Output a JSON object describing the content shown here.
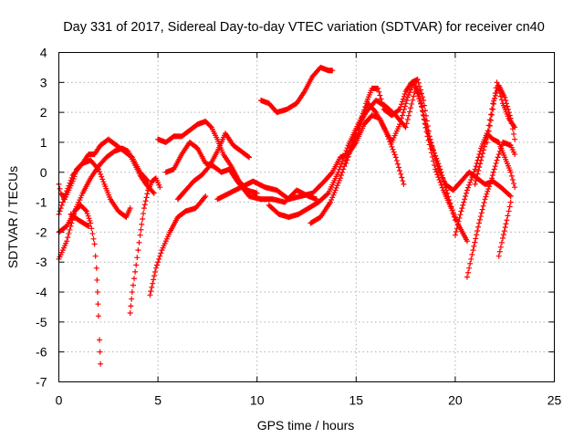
{
  "chart_data": {
    "type": "scatter",
    "title": "Day 331 of 2017, Sidereal Day-to-day VTEC variation (SDTVAR) for receiver cn40",
    "xlabel": "GPS time / hours",
    "ylabel": "SDTVAR / TECUs",
    "xlim": [
      0,
      25
    ],
    "ylim": [
      -7,
      4
    ],
    "xticks": [
      0,
      5,
      10,
      15,
      20,
      25
    ],
    "yticks": [
      -7,
      -6,
      -5,
      -4,
      -3,
      -2,
      -1,
      0,
      1,
      2,
      3,
      4
    ],
    "grid": true,
    "marker": "plus",
    "color": "#ff0000",
    "tracks": [
      [
        [
          0.0,
          -1.4
        ],
        [
          0.3,
          -0.8
        ],
        [
          0.7,
          -0.1
        ],
        [
          1.2,
          0.3
        ],
        [
          1.6,
          0.4
        ],
        [
          2.0,
          0.1
        ],
        [
          2.3,
          -0.4
        ],
        [
          2.6,
          -0.9
        ],
        [
          3.0,
          -1.3
        ],
        [
          3.4,
          -1.5
        ],
        [
          3.6,
          -1.2
        ]
      ],
      [
        [
          0.0,
          -2.0
        ],
        [
          0.4,
          -1.8
        ],
        [
          0.8,
          -1.3
        ],
        [
          1.2,
          -0.7
        ],
        [
          1.6,
          -0.2
        ],
        [
          2.0,
          0.2
        ],
        [
          2.4,
          0.5
        ],
        [
          2.8,
          0.7
        ],
        [
          3.2,
          0.8
        ],
        [
          3.5,
          0.7
        ],
        [
          3.8,
          0.3
        ],
        [
          4.1,
          -0.1
        ],
        [
          4.4,
          -0.4
        ],
        [
          4.8,
          -0.7
        ]
      ],
      [
        [
          0.0,
          -2.9
        ],
        [
          0.2,
          -2.6
        ],
        [
          0.4,
          -2.3
        ],
        [
          0.6,
          -1.8
        ],
        [
          0.8,
          -1.3
        ],
        [
          1.1,
          -1.1
        ],
        [
          1.4,
          -1.3
        ],
        [
          1.6,
          -1.7
        ],
        [
          1.8,
          -2.4
        ],
        [
          1.9,
          -3.2
        ],
        [
          1.95,
          -4.0
        ],
        [
          2.0,
          -4.8
        ],
        [
          2.05,
          -5.6
        ],
        [
          2.1,
          -6.4
        ]
      ],
      [
        [
          0.0,
          -0.4
        ],
        [
          0.1,
          -0.7
        ],
        [
          0.3,
          -0.9
        ],
        [
          0.5,
          -0.6
        ],
        [
          0.7,
          -0.3
        ],
        [
          0.9,
          0.1
        ],
        [
          1.2,
          0.3
        ],
        [
          1.5,
          0.6
        ],
        [
          1.8,
          0.6
        ],
        [
          2.1,
          0.9
        ],
        [
          2.5,
          1.1
        ],
        [
          2.9,
          0.9
        ],
        [
          3.3,
          0.7
        ],
        [
          3.7,
          0.5
        ],
        [
          4.1,
          0.0
        ],
        [
          4.5,
          -0.3
        ]
      ],
      [
        [
          0.6,
          -1.4
        ],
        [
          1.0,
          -1.6
        ],
        [
          1.5,
          -1.8
        ]
      ],
      [
        [
          3.6,
          -4.7
        ],
        [
          3.7,
          -4.0
        ],
        [
          3.9,
          -3.1
        ],
        [
          4.1,
          -2.1
        ],
        [
          4.3,
          -1.2
        ],
        [
          4.5,
          -0.6
        ],
        [
          4.7,
          -0.3
        ],
        [
          4.9,
          -0.2
        ],
        [
          5.1,
          -0.5
        ]
      ],
      [
        [
          4.6,
          -4.1
        ],
        [
          4.9,
          -3.2
        ],
        [
          5.2,
          -2.6
        ],
        [
          5.6,
          -2.0
        ],
        [
          6.0,
          -1.5
        ],
        [
          6.4,
          -1.3
        ],
        [
          6.9,
          -1.2
        ],
        [
          7.4,
          -0.8
        ]
      ],
      [
        [
          5.0,
          1.1
        ],
        [
          5.4,
          1.0
        ],
        [
          5.8,
          1.2
        ],
        [
          6.2,
          1.2
        ],
        [
          6.6,
          1.4
        ],
        [
          7.0,
          1.6
        ],
        [
          7.4,
          1.7
        ],
        [
          7.7,
          1.5
        ],
        [
          8.0,
          1.1
        ],
        [
          8.3,
          0.6
        ],
        [
          8.7,
          0.2
        ],
        [
          9.1,
          -0.3
        ],
        [
          9.5,
          -0.6
        ],
        [
          10.0,
          -0.7
        ]
      ],
      [
        [
          5.4,
          0.0
        ],
        [
          5.8,
          0.1
        ],
        [
          6.2,
          0.6
        ],
        [
          6.6,
          1.0
        ],
        [
          7.0,
          0.8
        ],
        [
          7.4,
          0.3
        ],
        [
          7.8,
          0.2
        ],
        [
          8.2,
          0.0
        ],
        [
          8.6,
          0.1
        ],
        [
          9.0,
          -0.3
        ],
        [
          9.6,
          -0.8
        ],
        [
          10.2,
          -0.9
        ],
        [
          10.8,
          -0.9
        ],
        [
          11.4,
          -1.0
        ],
        [
          12.0,
          -0.6
        ],
        [
          12.6,
          -0.8
        ],
        [
          13.0,
          -0.9
        ]
      ],
      [
        [
          6.0,
          -0.9
        ],
        [
          6.4,
          -0.6
        ],
        [
          6.8,
          -0.3
        ],
        [
          7.2,
          -0.1
        ],
        [
          7.6,
          0.2
        ],
        [
          8.0,
          0.7
        ],
        [
          8.4,
          1.3
        ],
        [
          8.8,
          0.9
        ],
        [
          9.2,
          0.7
        ],
        [
          9.6,
          0.5
        ]
      ],
      [
        [
          8.0,
          -0.9
        ],
        [
          8.6,
          -0.7
        ],
        [
          9.2,
          -0.5
        ],
        [
          9.8,
          -0.3
        ],
        [
          10.4,
          -0.5
        ],
        [
          11.0,
          -0.6
        ],
        [
          11.6,
          -0.9
        ],
        [
          12.2,
          -0.8
        ],
        [
          12.8,
          -0.7
        ],
        [
          13.4,
          -0.3
        ],
        [
          13.8,
          0.0
        ],
        [
          14.2,
          0.5
        ],
        [
          14.6,
          0.6
        ],
        [
          15.0,
          1.0
        ],
        [
          15.4,
          1.6
        ],
        [
          15.8,
          1.9
        ],
        [
          16.2,
          1.8
        ],
        [
          16.6,
          1.2
        ],
        [
          17.0,
          0.5
        ],
        [
          17.4,
          -0.4
        ]
      ],
      [
        [
          10.6,
          -1.1
        ],
        [
          11.1,
          -1.4
        ],
        [
          11.6,
          -1.5
        ],
        [
          12.1,
          -1.4
        ],
        [
          12.6,
          -1.2
        ],
        [
          13.1,
          -1.0
        ],
        [
          13.6,
          -0.7
        ],
        [
          14.1,
          0.0
        ],
        [
          14.6,
          0.9
        ],
        [
          15.1,
          1.6
        ],
        [
          15.6,
          2.3
        ],
        [
          16.0,
          2.0
        ],
        [
          16.4,
          1.5
        ],
        [
          16.8,
          1.0
        ],
        [
          17.2,
          1.6
        ],
        [
          17.6,
          2.5
        ],
        [
          17.9,
          3.0
        ],
        [
          18.2,
          2.6
        ],
        [
          18.5,
          1.6
        ],
        [
          18.8,
          0.9
        ],
        [
          19.2,
          0.2
        ],
        [
          19.6,
          -0.7
        ],
        [
          20.0,
          -1.6
        ]
      ],
      [
        [
          10.2,
          2.4
        ],
        [
          10.6,
          2.3
        ],
        [
          11.0,
          2.0
        ],
        [
          11.5,
          2.1
        ],
        [
          12.0,
          2.3
        ],
        [
          12.4,
          2.7
        ],
        [
          12.8,
          3.2
        ],
        [
          13.2,
          3.5
        ],
        [
          13.6,
          3.4
        ],
        [
          13.8,
          3.4
        ]
      ],
      [
        [
          12.7,
          -1.7
        ],
        [
          13.2,
          -1.5
        ],
        [
          13.7,
          -1.0
        ],
        [
          14.2,
          -0.2
        ],
        [
          14.7,
          0.8
        ],
        [
          15.1,
          1.3
        ],
        [
          15.5,
          2.3
        ],
        [
          15.8,
          2.8
        ],
        [
          16.1,
          2.8
        ],
        [
          16.4,
          2.1
        ],
        [
          16.8,
          1.9
        ],
        [
          17.2,
          2.1
        ],
        [
          17.5,
          2.7
        ],
        [
          17.8,
          3.0
        ],
        [
          18.1,
          3.1
        ],
        [
          18.4,
          2.4
        ],
        [
          18.7,
          1.2
        ],
        [
          19.1,
          0.2
        ],
        [
          19.5,
          -0.4
        ],
        [
          19.9,
          -0.6
        ],
        [
          20.3,
          -0.3
        ],
        [
          20.7,
          0.0
        ],
        [
          21.1,
          -0.2
        ],
        [
          21.5,
          -0.4
        ],
        [
          21.9,
          -0.3
        ],
        [
          22.3,
          -0.5
        ],
        [
          22.8,
          -0.8
        ]
      ],
      [
        [
          14.5,
          0.3
        ],
        [
          15.0,
          1.4
        ],
        [
          15.5,
          2.0
        ],
        [
          16.0,
          2.4
        ],
        [
          16.5,
          2.2
        ],
        [
          17.0,
          1.9
        ],
        [
          17.5,
          1.5
        ],
        [
          18.0,
          2.8
        ],
        [
          18.3,
          2.2
        ],
        [
          18.6,
          1.2
        ],
        [
          19.0,
          0.1
        ],
        [
          19.4,
          -0.6
        ],
        [
          19.8,
          -1.2
        ],
        [
          20.2,
          -1.8
        ],
        [
          20.6,
          -2.3
        ]
      ],
      [
        [
          20.6,
          -3.5
        ],
        [
          20.9,
          -2.6
        ],
        [
          21.2,
          -1.7
        ],
        [
          21.5,
          -0.9
        ],
        [
          21.8,
          -0.3
        ],
        [
          22.1,
          0.4
        ],
        [
          22.4,
          1.0
        ],
        [
          22.8,
          0.9
        ],
        [
          23.0,
          0.6
        ]
      ],
      [
        [
          20.0,
          -2.1
        ],
        [
          20.3,
          -1.3
        ],
        [
          20.6,
          -0.6
        ],
        [
          21.0,
          0.1
        ],
        [
          21.3,
          0.8
        ],
        [
          21.6,
          1.3
        ],
        [
          21.9,
          1.1
        ],
        [
          22.2,
          1.0
        ],
        [
          22.5,
          0.5
        ],
        [
          22.8,
          0.0
        ],
        [
          23.0,
          -0.5
        ]
      ],
      [
        [
          21.0,
          -0.4
        ],
        [
          21.3,
          0.4
        ],
        [
          21.6,
          1.2
        ],
        [
          21.9,
          2.3
        ],
        [
          22.2,
          2.9
        ],
        [
          22.5,
          2.5
        ],
        [
          22.8,
          1.8
        ],
        [
          23.0,
          1.1
        ]
      ],
      [
        [
          21.6,
          1.0
        ],
        [
          21.9,
          2.1
        ],
        [
          22.1,
          3.0
        ],
        [
          22.4,
          2.3
        ],
        [
          22.7,
          1.8
        ],
        [
          23.0,
          1.5
        ]
      ],
      [
        [
          22.2,
          -2.8
        ],
        [
          22.4,
          -2.2
        ],
        [
          22.6,
          -1.6
        ],
        [
          22.8,
          -1.0
        ]
      ]
    ]
  }
}
